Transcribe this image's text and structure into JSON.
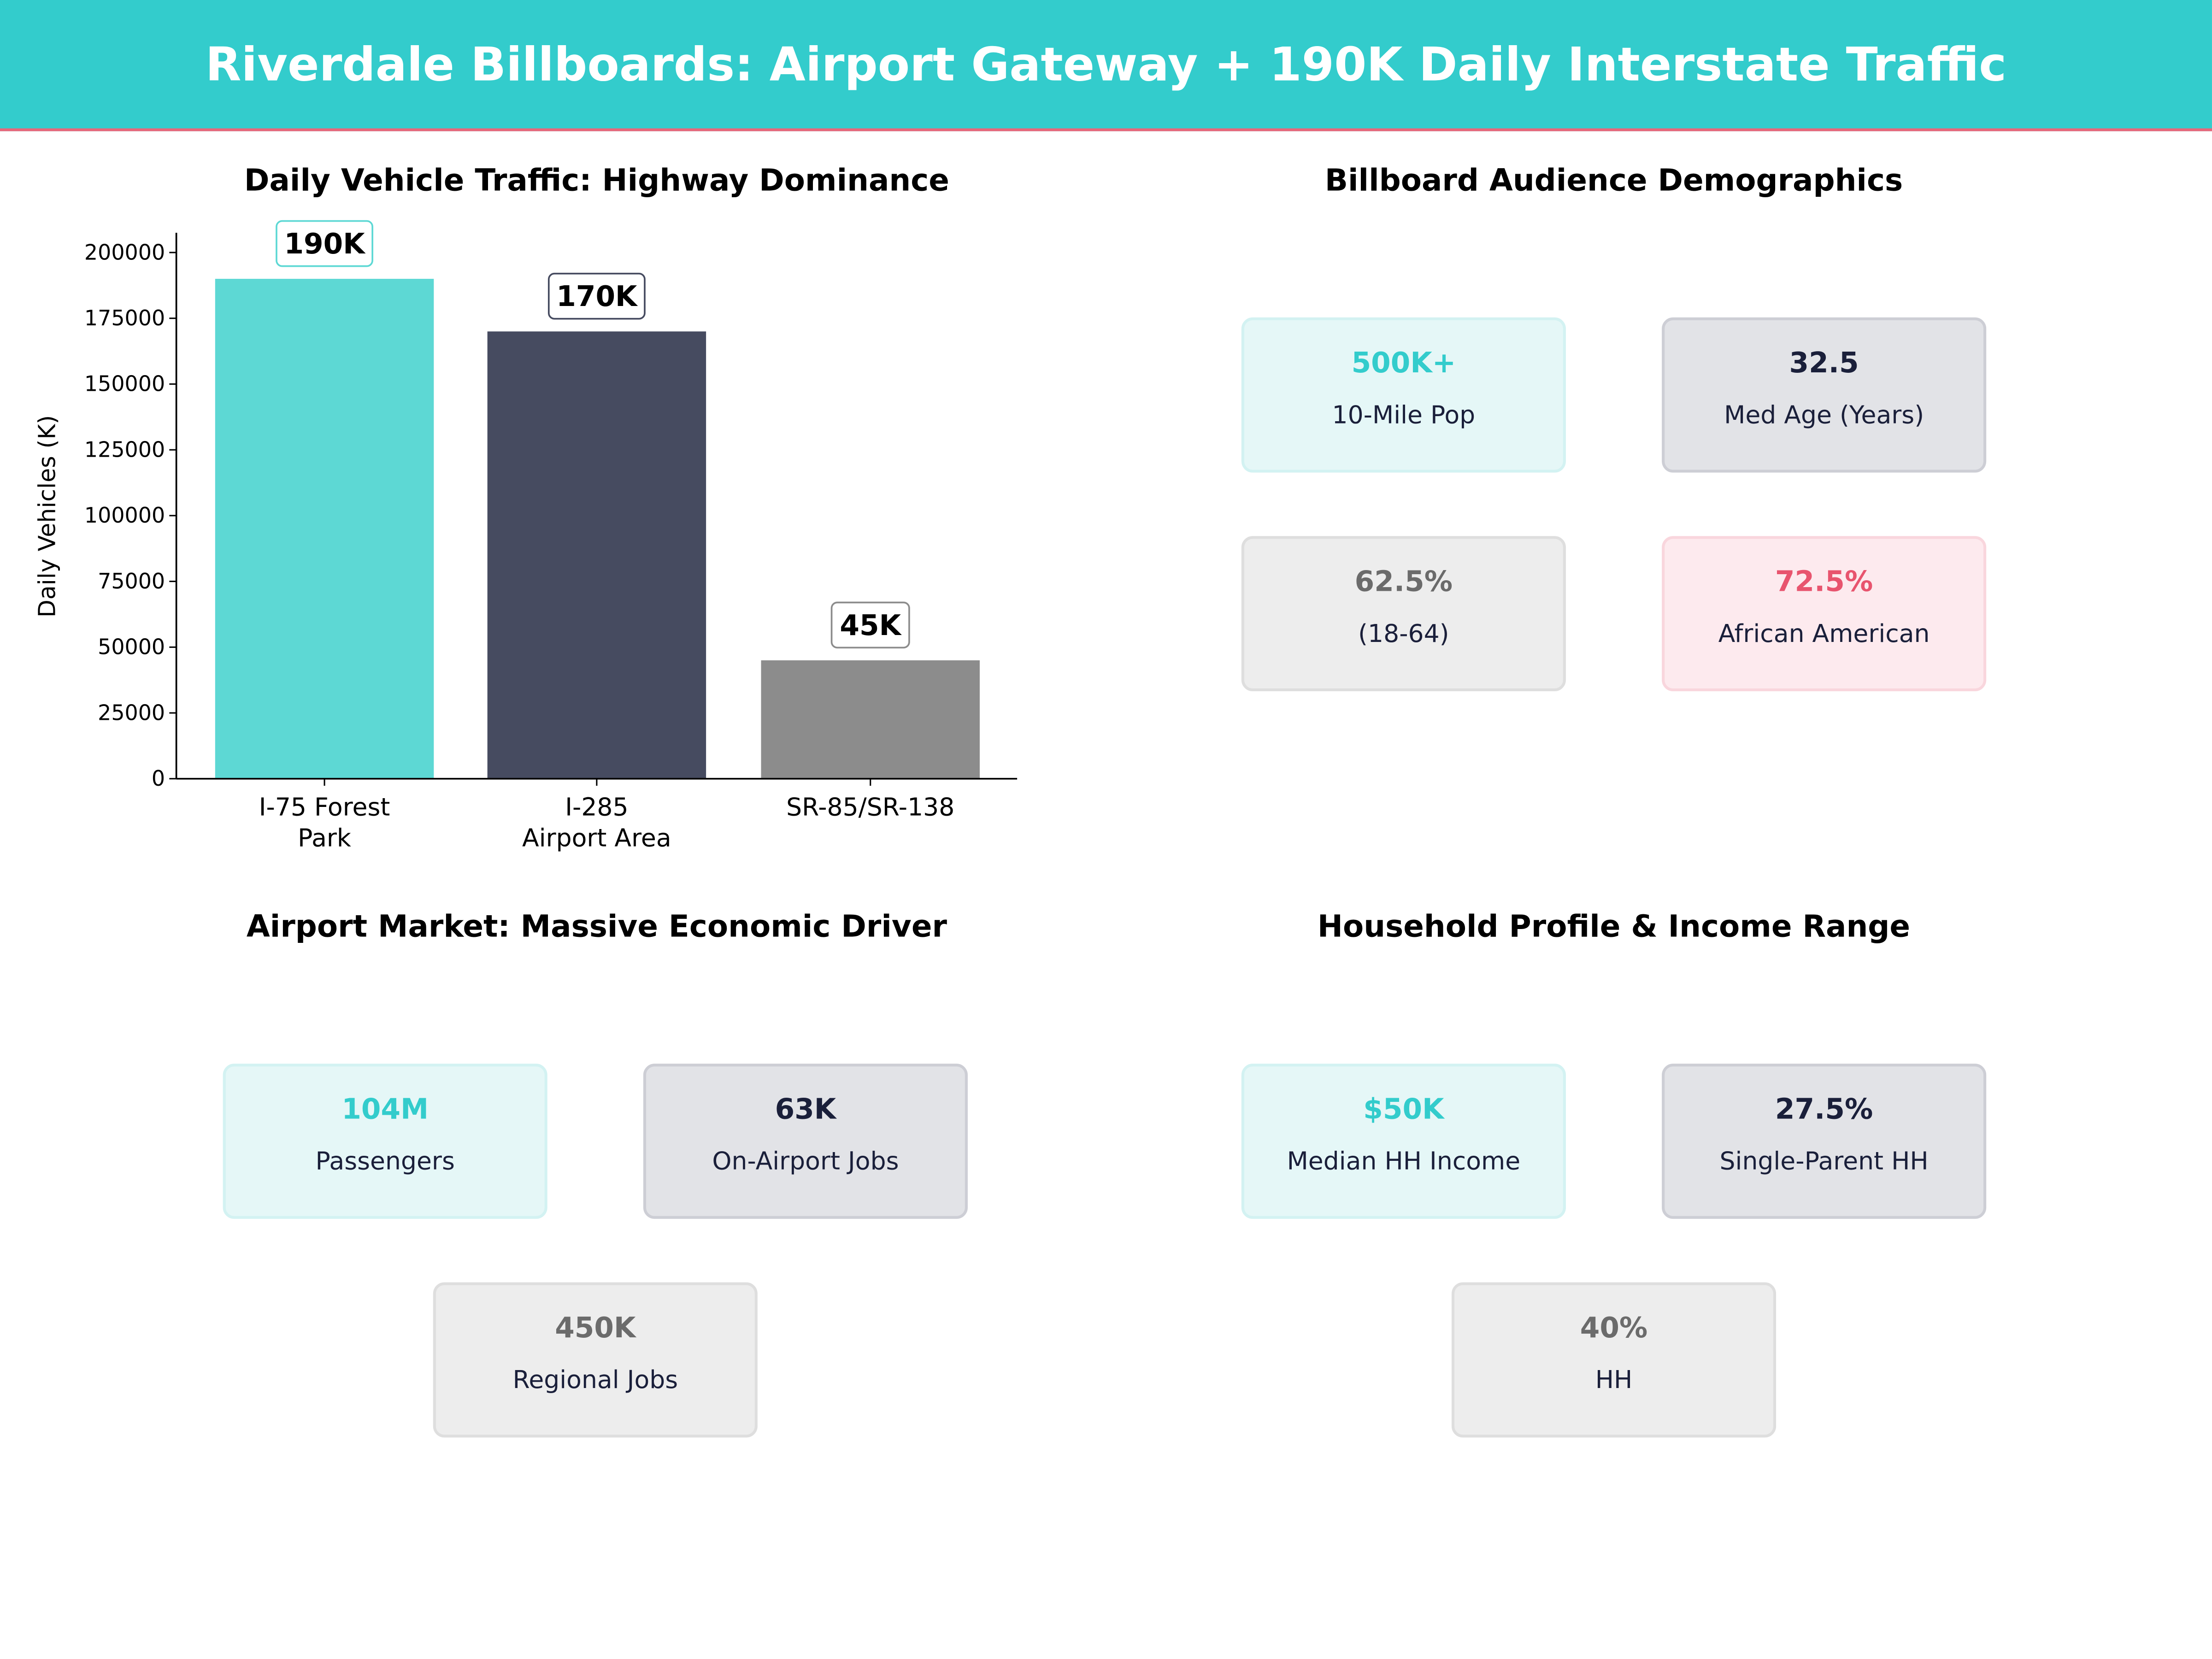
{
  "header": {
    "title": "Riverdale Billboards: Airport Gateway + 190K Daily Interstate Traffic"
  },
  "colors": {
    "header_bg": "#33CCCC",
    "accent_line": "#E8667A"
  },
  "chart_data": {
    "type": "bar",
    "title": "Daily Vehicle Traffic: Highway Dominance",
    "xlabel": "",
    "ylabel": "Daily Vehicles (K)",
    "categories": [
      "I-75 Forest\nPark",
      "I-285\nAirport Area",
      "SR-85/SR-138"
    ],
    "values": [
      190000,
      170000,
      45000
    ],
    "data_labels": [
      "190K",
      "170K",
      "45K"
    ],
    "colors": [
      "#5DD8D4",
      "#464B60",
      "#8C8C8C"
    ],
    "yticks": [
      0,
      25000,
      50000,
      75000,
      100000,
      125000,
      150000,
      175000,
      200000
    ],
    "ylim": [
      0,
      208000
    ],
    "grid": false
  },
  "demographics": {
    "title": "Billboard Audience Demographics",
    "cards": [
      {
        "value": "500K+",
        "label": "10-Mile Pop",
        "style": "teal"
      },
      {
        "value": "32.5",
        "label": "Med Age (Years)",
        "style": "dark"
      },
      {
        "value": "62.5%",
        "label": "(18-64)",
        "style": "gray"
      },
      {
        "value": "72.5%",
        "label": "African American",
        "style": "pink"
      }
    ]
  },
  "airport": {
    "title": "Airport Market: Massive Economic Driver",
    "cards": [
      {
        "value": "104M",
        "label": "Passengers",
        "style": "teal"
      },
      {
        "value": "63K",
        "label": "On-Airport Jobs",
        "style": "dark"
      },
      {
        "value": "450K",
        "label": "Regional Jobs",
        "style": "gray"
      }
    ]
  },
  "household": {
    "title": "Household Profile & Income Range",
    "cards": [
      {
        "value": "$50K",
        "label": "Median HH Income",
        "style": "teal"
      },
      {
        "value": "27.5%",
        "label": "Single-Parent HH",
        "style": "dark"
      },
      {
        "value": "40%",
        "label": "HH",
        "style": "gray"
      }
    ]
  }
}
